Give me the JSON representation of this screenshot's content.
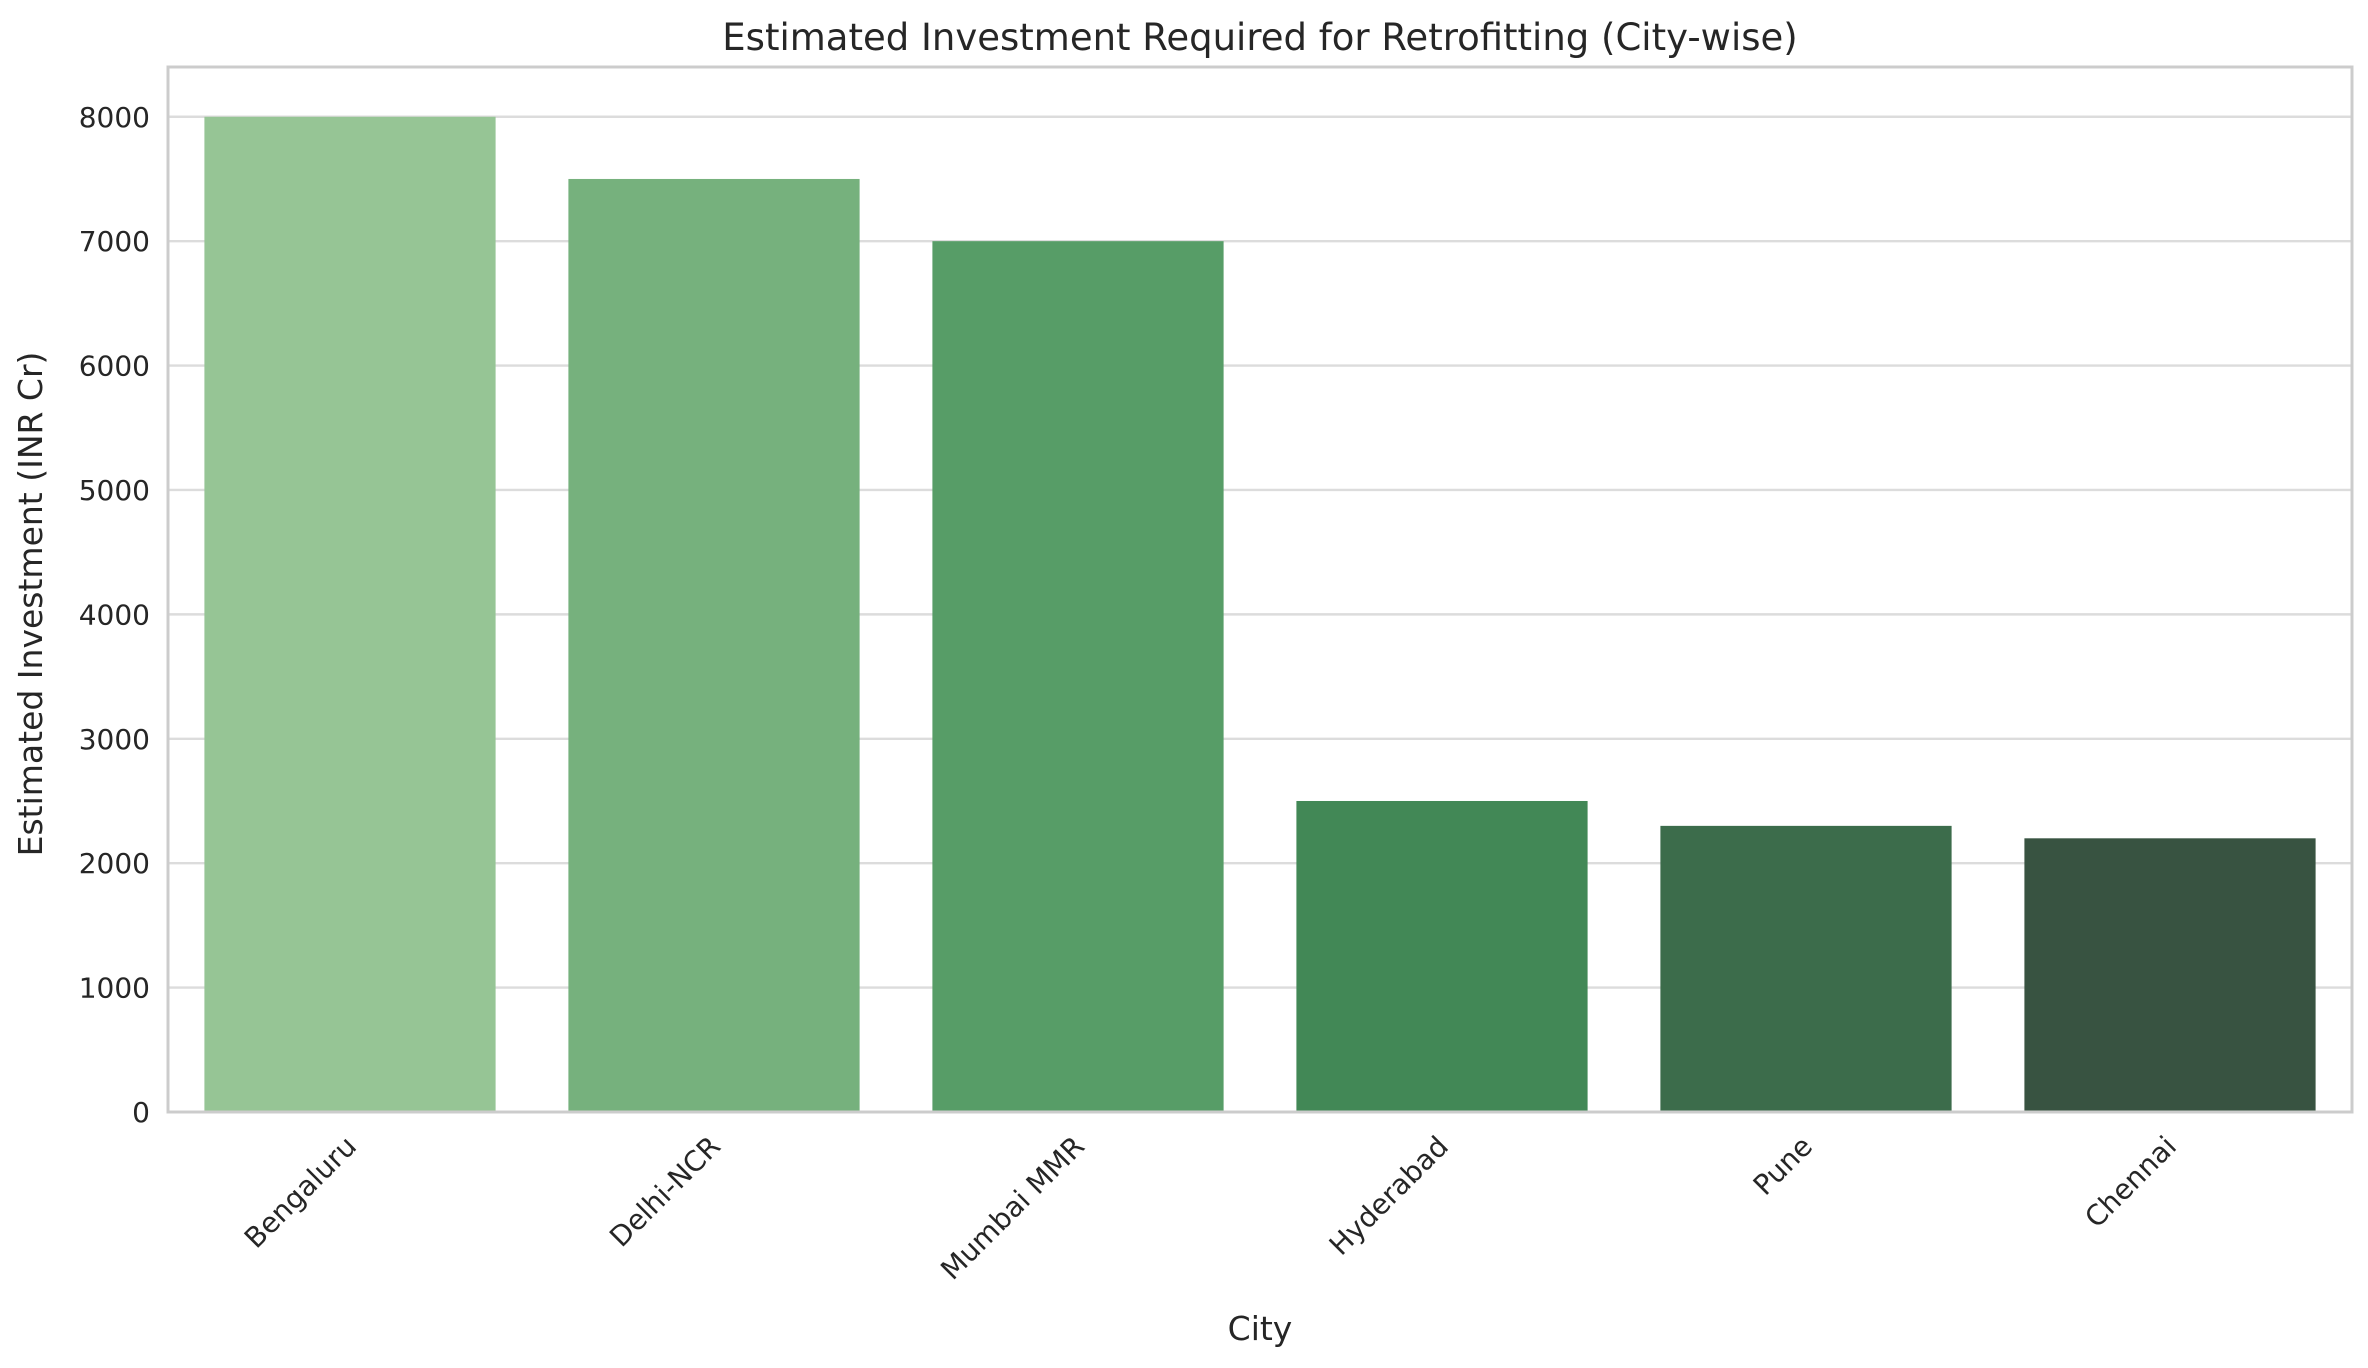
{
  "chart_data": {
    "type": "bar",
    "title": "Estimated Investment Required for Retrofitting (City-wise)",
    "xlabel": "City",
    "ylabel": "Estimated Investment (INR Cr)",
    "categories": [
      "Bengaluru",
      "Delhi-NCR",
      "Mumbai MMR",
      "Hyderabad",
      "Pune",
      "Chennai"
    ],
    "values": [
      8000,
      7500,
      7000,
      2500,
      2300,
      2200
    ],
    "colors": [
      "#96c595",
      "#76b17d",
      "#579d67",
      "#428856",
      "#3c6c4b",
      "#385341"
    ],
    "ylim": [
      0,
      8400
    ],
    "yticks": [
      0,
      1000,
      2000,
      3000,
      4000,
      5000,
      6000,
      7000,
      8000
    ],
    "grid": true,
    "legend": "none"
  }
}
